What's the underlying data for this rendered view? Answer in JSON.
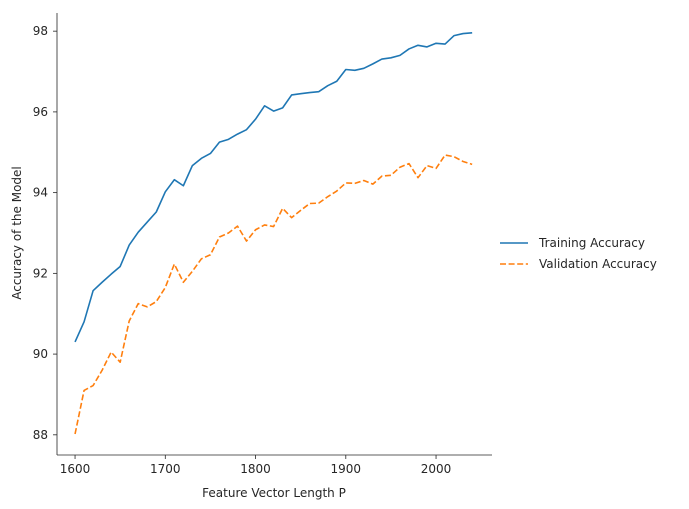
{
  "chart_data": {
    "type": "line",
    "title": "",
    "xlabel": "Feature Vector Length P",
    "ylabel": "Accuracy of the Model",
    "xlim": [
      1580,
      2062
    ],
    "ylim": [
      87.5,
      98.45
    ],
    "xticks": [
      1600,
      1700,
      1800,
      1900,
      2000
    ],
    "yticks": [
      88,
      90,
      92,
      94,
      96,
      98
    ],
    "grid": false,
    "legend_position": "right",
    "x": [
      1600,
      1610,
      1620,
      1630,
      1640,
      1650,
      1660,
      1670,
      1680,
      1690,
      1700,
      1710,
      1720,
      1730,
      1740,
      1750,
      1760,
      1770,
      1780,
      1790,
      1800,
      1810,
      1820,
      1830,
      1840,
      1850,
      1860,
      1870,
      1880,
      1890,
      1900,
      1910,
      1920,
      1930,
      1940,
      1950,
      1960,
      1970,
      1980,
      1990,
      2000,
      2010,
      2020,
      2030,
      2040
    ],
    "series": [
      {
        "name": "Training Accuracy",
        "color": "#1f77b4",
        "dash": "solid",
        "values": [
          90.3,
          90.8,
          91.57,
          91.78,
          91.98,
          92.17,
          92.7,
          93.02,
          93.27,
          93.52,
          94.02,
          94.32,
          94.17,
          94.67,
          94.85,
          94.97,
          95.25,
          95.32,
          95.45,
          95.56,
          95.82,
          96.15,
          96.02,
          96.1,
          96.42,
          96.45,
          96.48,
          96.5,
          96.65,
          96.76,
          97.05,
          97.03,
          97.08,
          97.19,
          97.31,
          97.34,
          97.4,
          97.56,
          97.65,
          97.61,
          97.7,
          97.68,
          97.89,
          97.94,
          97.96
        ]
      },
      {
        "name": "Validation Accuracy",
        "color": "#ff7f0e",
        "dash": "dashed",
        "values": [
          88.02,
          89.1,
          89.22,
          89.6,
          90.05,
          89.8,
          90.82,
          91.25,
          91.17,
          91.3,
          91.65,
          92.23,
          91.78,
          92.05,
          92.36,
          92.46,
          92.9,
          93.0,
          93.17,
          92.8,
          93.08,
          93.2,
          93.16,
          93.61,
          93.38,
          93.56,
          93.73,
          93.74,
          93.9,
          94.04,
          94.24,
          94.23,
          94.3,
          94.21,
          94.41,
          94.43,
          94.63,
          94.72,
          94.37,
          94.67,
          94.6,
          94.93,
          94.89,
          94.77,
          94.7
        ]
      }
    ]
  }
}
